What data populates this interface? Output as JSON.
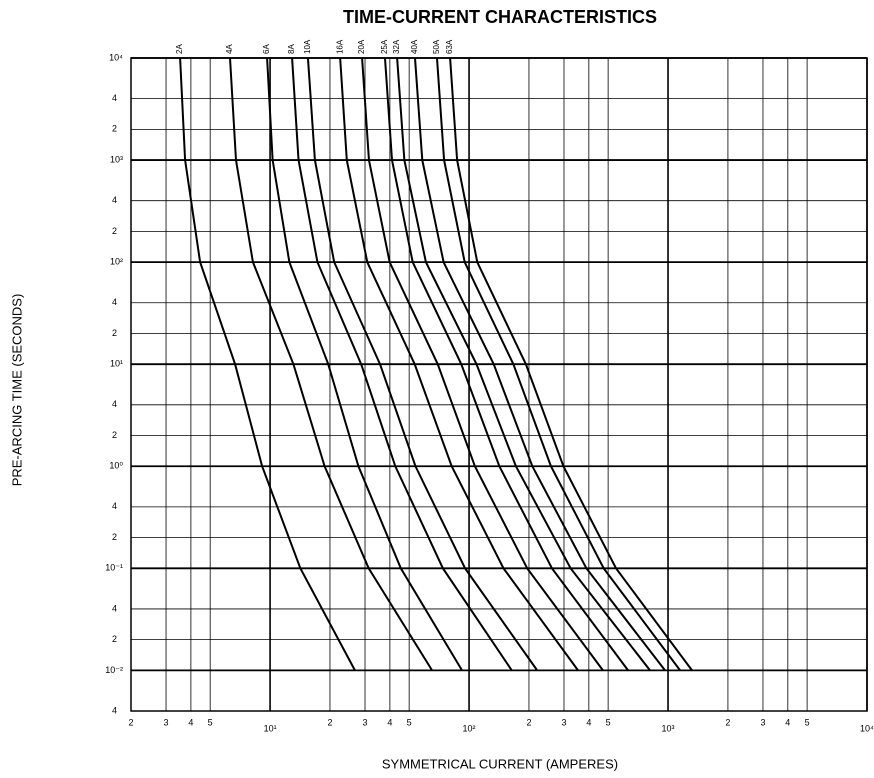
{
  "chart_data": {
    "type": "line",
    "title": "TIME-CURRENT CHARACTERISTICS",
    "x_label": "SYMMETRICAL CURRENT (AMPERES)",
    "y_label": "PRE-ARCING TIME (SECONDS)",
    "log_x": true,
    "log_y": true,
    "grid": true,
    "xlim": [
      2,
      10000
    ],
    "ylim": [
      0.004,
      10000
    ],
    "xticks": [
      2,
      3,
      4,
      5,
      {
        "value": 10,
        "label": "10¹"
      },
      {
        "value": 20,
        "label": "2"
      },
      {
        "value": 30,
        "label": "3"
      },
      {
        "value": 40,
        "label": "4"
      },
      {
        "value": 50,
        "label": "5"
      },
      {
        "value": 100,
        "label": "10²"
      },
      {
        "value": 200,
        "label": "2"
      },
      {
        "value": 300,
        "label": "3"
      },
      {
        "value": 400,
        "label": "4"
      },
      {
        "value": 500,
        "label": "5"
      },
      {
        "value": 1000,
        "label": "10³"
      },
      {
        "value": 2000,
        "label": "2"
      },
      {
        "value": 3000,
        "label": "3"
      },
      {
        "value": 4000,
        "label": "4"
      },
      {
        "value": 5000,
        "label": "5"
      },
      {
        "value": 10000,
        "label": "10⁴"
      }
    ],
    "yticks": [
      {
        "value": 10000,
        "label": "10⁴"
      },
      {
        "value": 4000,
        "label": "4"
      },
      {
        "value": 2000,
        "label": "2"
      },
      {
        "value": 1000,
        "label": "10³"
      },
      {
        "value": 400,
        "label": "4"
      },
      {
        "value": 200,
        "label": "2"
      },
      {
        "value": 100,
        "label": "10²"
      },
      {
        "value": 40,
        "label": "4"
      },
      {
        "value": 20,
        "label": "2"
      },
      {
        "value": 10,
        "label": "10¹"
      },
      4,
      2,
      {
        "value": 1,
        "label": "10⁰"
      },
      {
        "value": 0.4,
        "label": "4"
      },
      {
        "value": 0.2,
        "label": "2"
      },
      {
        "value": 0.1,
        "label": "10⁻¹"
      },
      {
        "value": 0.04,
        "label": "4"
      },
      {
        "value": 0.02,
        "label": "2"
      },
      {
        "value": 0.01,
        "label": "10⁻²"
      },
      {
        "value": 0.004,
        "label": "4"
      }
    ],
    "series": [
      {
        "name": "2A",
        "color": "#000000",
        "x": [
          3.53,
          3.74,
          4.45,
          6.67,
          9.12,
          14.2,
          26.7
        ],
        "values": [
          10000,
          1000,
          100,
          10,
          1,
          0.1,
          0.01
        ]
      },
      {
        "name": "4A",
        "color": "#000000",
        "x": [
          6.29,
          6.74,
          8.2,
          13.1,
          18.8,
          31.3,
          65.2
        ],
        "values": [
          10000,
          1000,
          100,
          10,
          1,
          0.1,
          0.01
        ]
      },
      {
        "name": "6A",
        "color": "#000000",
        "x": [
          9.66,
          10.3,
          12.5,
          19.6,
          27.8,
          45.4,
          92.2
        ],
        "values": [
          10000,
          1000,
          100,
          10,
          1,
          0.1,
          0.01
        ]
      },
      {
        "name": "8A",
        "color": "#000000",
        "x": [
          12.9,
          13.9,
          17.3,
          28.7,
          42.6,
          73.9,
          164
        ],
        "values": [
          10000,
          1000,
          100,
          10,
          1,
          0.1,
          0.01
        ]
      },
      {
        "name": "10A",
        "color": "#000000",
        "x": [
          15.5,
          16.8,
          21.0,
          35.7,
          53.8,
          95.5,
          220
        ],
        "values": [
          10000,
          1000,
          100,
          10,
          1,
          0.1,
          0.01
        ]
      },
      {
        "name": "16A",
        "color": "#000000",
        "x": [
          22.5,
          24.3,
          30.8,
          53.3,
          81.8,
          149,
          353
        ],
        "values": [
          10000,
          1000,
          100,
          10,
          1,
          0.1,
          0.01
        ]
      },
      {
        "name": "20A",
        "color": "#000000",
        "x": [
          29.0,
          31.4,
          39.9,
          69.6,
          107,
          196,
          471
        ],
        "values": [
          10000,
          1000,
          100,
          10,
          1,
          0.1,
          0.01
        ]
      },
      {
        "name": "25A",
        "color": "#000000",
        "x": [
          37.8,
          41.0,
          52.1,
          91.4,
          142,
          261,
          630
        ],
        "values": [
          10000,
          1000,
          100,
          10,
          1,
          0.1,
          0.01
        ]
      },
      {
        "name": "32A",
        "color": "#000000",
        "x": [
          43.5,
          47.3,
          60.7,
          109,
          172,
          324,
          812
        ],
        "values": [
          10000,
          1000,
          100,
          10,
          1,
          0.1,
          0.01
        ]
      },
      {
        "name": "40A",
        "color": "#000000",
        "x": [
          53.5,
          58.2,
          74.5,
          133,
          208,
          389,
          966
        ],
        "values": [
          10000,
          1000,
          100,
          10,
          1,
          0.1,
          0.01
        ]
      },
      {
        "name": "50A",
        "color": "#000000",
        "x": [
          69.0,
          74.9,
          95.1,
          167,
          258,
          475,
          1150
        ],
        "values": [
          10000,
          1000,
          100,
          10,
          1,
          0.1,
          0.01
        ]
      },
      {
        "name": "63A",
        "color": "#000000",
        "x": [
          80.3,
          87.1,
          110,
          193,
          298,
          548,
          1320
        ],
        "values": [
          10000,
          1000,
          100,
          10,
          1,
          0.1,
          0.01
        ]
      }
    ]
  }
}
